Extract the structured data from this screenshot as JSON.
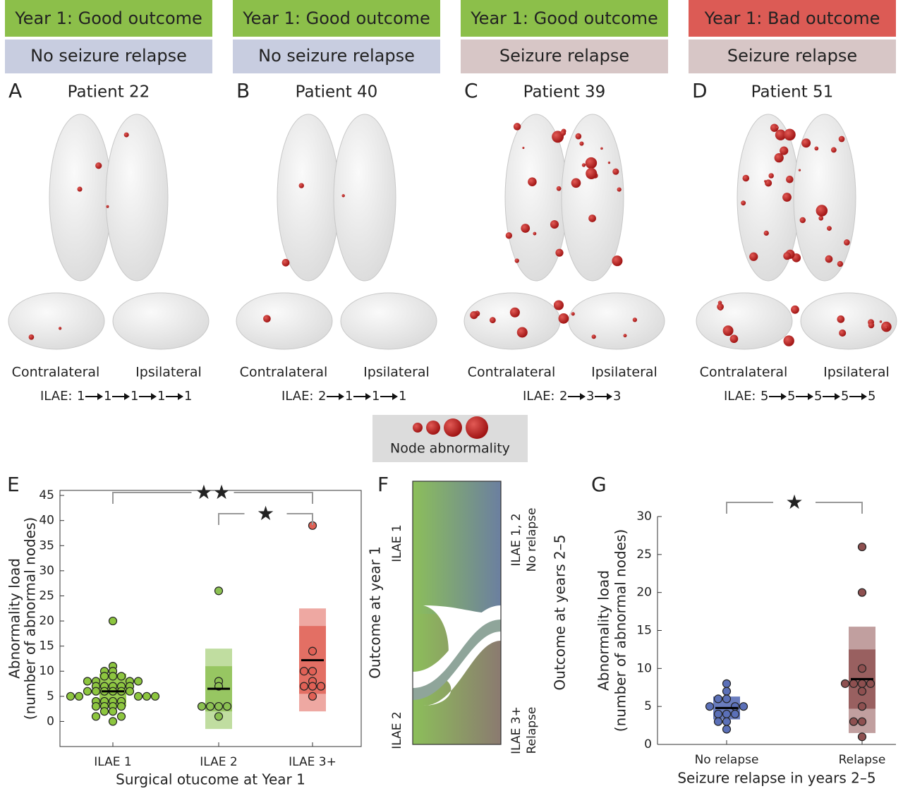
{
  "panels": [
    {
      "letter": "A",
      "outcome": "Year 1: Good outcome",
      "outcome_color": "#8cbf4a",
      "relapse": "No seizure relapse",
      "relapse_color": "#c8cde0",
      "patient": "Patient 22",
      "left": "Contralateral",
      "right": "Ipsilateral",
      "ilae_prefix": "ILAE:",
      "ilae": [
        {
          "text": "1",
          "color": "#7cb342"
        },
        {
          "text": "1",
          "color": "#6b8ec5"
        },
        {
          "text": "1",
          "color": "#6b8ec5"
        },
        {
          "text": "1",
          "color": "#6b8ec5"
        },
        {
          "text": "1",
          "color": "#6b8ec5"
        }
      ]
    },
    {
      "letter": "B",
      "outcome": "Year 1: Good outcome",
      "outcome_color": "#8cbf4a",
      "relapse": "No seizure relapse",
      "relapse_color": "#c8cde0",
      "patient": "Patient 40",
      "left": "Contralateral",
      "right": "Ipsilateral",
      "ilae_prefix": "ILAE:",
      "ilae": [
        {
          "text": "2",
          "color": "#7cb342"
        },
        {
          "text": "1",
          "color": "#6b8ec5"
        },
        {
          "text": "1",
          "color": "#6b8ec5"
        },
        {
          "text": "1",
          "color": "#6b8ec5"
        }
      ]
    },
    {
      "letter": "C",
      "outcome": "Year 1: Good outcome",
      "outcome_color": "#8cbf4a",
      "relapse": "Seizure relapse",
      "relapse_color": "#d7c6c6",
      "patient": "Patient 39",
      "left": "Contralateral",
      "right": "Ipsilateral",
      "ilae_prefix": "ILAE:",
      "ilae": [
        {
          "text": "2",
          "color": "#7cb342"
        },
        {
          "text": "3",
          "color": "#b5706e"
        },
        {
          "text": "3",
          "color": "#b5706e"
        }
      ]
    },
    {
      "letter": "D",
      "outcome": "Year 1: Bad outcome",
      "outcome_color": "#dc5b55",
      "relapse": "Seizure relapse",
      "relapse_color": "#d7c6c6",
      "patient": "Patient 51",
      "left": "Contralateral",
      "right": "Ipsilateral",
      "ilae_prefix": "ILAE:",
      "ilae": [
        {
          "text": "5",
          "color": "#d9342b"
        },
        {
          "text": "5",
          "color": "#222222"
        },
        {
          "text": "5",
          "color": "#222222"
        },
        {
          "text": "5",
          "color": "#222222"
        },
        {
          "text": "5",
          "color": "#222222"
        }
      ]
    }
  ],
  "legend": {
    "label": "Node abnormality"
  },
  "panel_f": {
    "letter": "F",
    "left_axis": "Outcome at year 1",
    "right_axis": "Outcome at years 2–5",
    "left_top": "ILAE 1",
    "left_bottom": "ILAE 2",
    "right_top": [
      "ILAE 1, 2",
      "No relapse"
    ],
    "right_bottom": [
      "ILAE 3+",
      "Relapse"
    ]
  },
  "chart_data": [
    {
      "type": "strip",
      "letter": "E",
      "frame": "box",
      "ylabel": [
        "Abnormality load",
        "(number of abnormal nodes)"
      ],
      "xlabel": "Surgical otucome at Year 1",
      "categories": [
        "ILAE 1",
        "ILAE 2",
        "ILAE 3+"
      ],
      "ylim": [
        -5,
        46
      ],
      "yticks": [
        0,
        5,
        10,
        15,
        20,
        25,
        30,
        35,
        40,
        45
      ],
      "groups": [
        {
          "color": "#8dc63f",
          "mean": 6,
          "inner_band": [
            3,
            9.5
          ],
          "outer_band": [
            3,
            9.5
          ],
          "values": [
            20,
            11,
            10,
            10,
            9,
            9,
            9,
            8,
            8,
            8,
            8,
            7,
            7,
            7,
            7,
            7,
            6,
            6,
            6,
            6,
            6,
            6,
            5,
            5,
            5,
            5,
            5,
            4,
            4,
            4,
            4,
            3,
            3,
            3,
            3,
            2,
            2,
            1,
            1,
            0
          ]
        },
        {
          "color": "#8cc152",
          "mean": 6.5,
          "inner_band": [
            2,
            11
          ],
          "outer_band": [
            -1.5,
            14.5
          ],
          "values": [
            26,
            8,
            7,
            3,
            3,
            3,
            3,
            1
          ]
        },
        {
          "color": "#e06055",
          "mean": 12.2,
          "inner_band": [
            5.5,
            19
          ],
          "outer_band": [
            2,
            22.5
          ],
          "values": [
            39,
            14,
            10,
            10,
            8,
            7,
            7,
            7,
            5
          ]
        }
      ],
      "annotations": [
        {
          "text": "★★",
          "from": 0,
          "to": 2
        },
        {
          "text": "★",
          "from": 1,
          "to": 2
        }
      ]
    },
    {
      "type": "strip",
      "letter": "G",
      "frame": "axes",
      "ylabel": [
        "Abnormality load",
        "(number of abnormal nodes)"
      ],
      "xlabel": "Seizure relapse in years 2–5",
      "categories": [
        "No relapse",
        "Relapse"
      ],
      "ylim": [
        0,
        30
      ],
      "yticks": [
        0,
        5,
        10,
        15,
        20,
        25,
        30
      ],
      "groups": [
        {
          "color": "#5b70b8",
          "mean": 4.8,
          "inner_band": [
            3.3,
            6.3
          ],
          "outer_band": [
            3.3,
            6.3
          ],
          "values": [
            8,
            7,
            6,
            6,
            5,
            5,
            5,
            4,
            4,
            4,
            3,
            3,
            2
          ]
        },
        {
          "color": "#8e5050",
          "mean": 8.6,
          "inner_band": [
            4.7,
            12.5
          ],
          "outer_band": [
            1.5,
            15.5
          ],
          "values": [
            26,
            20,
            10,
            8,
            8,
            8,
            8,
            7,
            5,
            3,
            3,
            1
          ]
        }
      ],
      "annotations": [
        {
          "text": "★",
          "from": 0,
          "to": 1
        }
      ]
    }
  ]
}
